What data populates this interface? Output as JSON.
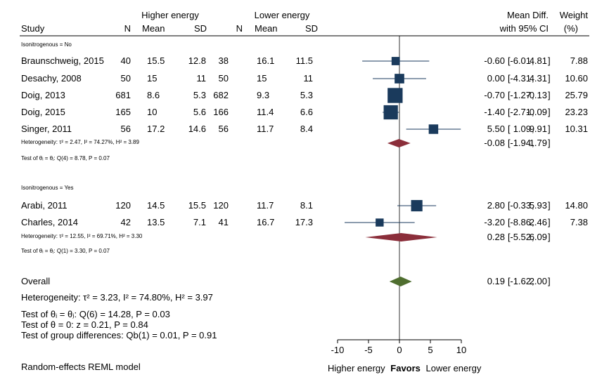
{
  "chart_data": {
    "type": "forest",
    "header": {
      "study": "Study",
      "group1": "Higher energy",
      "group2": "Lower energy",
      "n": "N",
      "mean": "Mean",
      "sd": "SD",
      "effect_line1": "Mean Diff.",
      "effect_line2": "with 95% CI",
      "weight_line1": "Weight",
      "weight_line2": "(%)"
    },
    "subgroups": [
      {
        "label": "Isonitrogenous = No",
        "studies": [
          {
            "name": "Braunschweig, 2015",
            "n1": "40",
            "mean1": "15.5",
            "sd1": "12.8",
            "n2": "38",
            "mean2": "16.1",
            "sd2": "11.5",
            "md": -0.6,
            "lo": -6.01,
            "hi": 4.81,
            "weight": 7.88,
            "md_text": "-0.60",
            "lo_text": "-6.01",
            "hi_text": "4.81",
            "weight_text": "7.88"
          },
          {
            "name": "Desachy, 2008",
            "n1": "50",
            "mean1": "15",
            "sd1": "11",
            "n2": "50",
            "mean2": "15",
            "sd2": "11",
            "md": 0.0,
            "lo": -4.31,
            "hi": 4.31,
            "weight": 10.6,
            "md_text": "0.00",
            "lo_text": "-4.31",
            "hi_text": "4.31",
            "weight_text": "10.60"
          },
          {
            "name": "Doig, 2013",
            "n1": "681",
            "mean1": "8.6",
            "sd1": "5.3",
            "n2": "682",
            "mean2": "9.3",
            "sd2": "5.3",
            "md": -0.7,
            "lo": -1.27,
            "hi": -0.13,
            "weight": 25.79,
            "md_text": "-0.70",
            "lo_text": "-1.27",
            "hi_text": "-0.13",
            "weight_text": "25.79"
          },
          {
            "name": "Doig, 2015",
            "n1": "165",
            "mean1": "10",
            "sd1": "5.6",
            "n2": "166",
            "mean2": "11.4",
            "sd2": "6.6",
            "md": -1.4,
            "lo": -2.71,
            "hi": -0.09,
            "weight": 23.23,
            "md_text": "-1.40",
            "lo_text": "-2.71",
            "hi_text": "-0.09",
            "weight_text": "23.23"
          },
          {
            "name": "Singer, 2011",
            "n1": "56",
            "mean1": "17.2",
            "sd1": "14.6",
            "n2": "56",
            "mean2": "11.7",
            "sd2": "8.4",
            "md": 5.5,
            "lo": 1.09,
            "hi": 9.91,
            "weight": 10.31,
            "md_text": "5.50",
            "lo_text": "1.09",
            "hi_text": "9.91",
            "weight_text": "10.31"
          }
        ],
        "pooled": {
          "md": -0.08,
          "lo": -1.94,
          "hi": 1.79,
          "md_text": "-0.08",
          "lo_text": "-1.94",
          "hi_text": "1.79"
        },
        "heterogeneity": "Heterogeneity: τ² = 2.47, I² = 74.27%, H² = 3.89",
        "test": "Test of θᵢ = θⱼ: Q(4) = 8.78, P = 0.07"
      },
      {
        "label": "Isonitrogenous = Yes",
        "studies": [
          {
            "name": "Arabi, 2011",
            "n1": "120",
            "mean1": "14.5",
            "sd1": "15.5",
            "n2": "120",
            "mean2": "11.7",
            "sd2": "8.1",
            "md": 2.8,
            "lo": -0.33,
            "hi": 5.93,
            "weight": 14.8,
            "md_text": "2.80",
            "lo_text": "-0.33",
            "hi_text": "5.93",
            "weight_text": "14.80"
          },
          {
            "name": "Charles, 2014",
            "n1": "42",
            "mean1": "13.5",
            "sd1": "7.1",
            "n2": "41",
            "mean2": "16.7",
            "sd2": "17.3",
            "md": -3.2,
            "lo": -8.86,
            "hi": 2.46,
            "weight": 7.38,
            "md_text": "-3.20",
            "lo_text": "-8.86",
            "hi_text": "2.46",
            "weight_text": "7.38"
          }
        ],
        "pooled": {
          "md": 0.28,
          "lo": -5.52,
          "hi": 6.09,
          "md_text": "0.28",
          "lo_text": "-5.52",
          "hi_text": "6.09"
        },
        "heterogeneity": "Heterogeneity: τ² = 12.55, I² = 69.71%, H² = 3.30",
        "test": "Test of θᵢ = θⱼ: Q(1) = 3.30, P = 0.07"
      }
    ],
    "overall": {
      "label": "Overall",
      "md": 0.19,
      "lo": -1.62,
      "hi": 2.0,
      "md_text": "0.19",
      "lo_text": "-1.62",
      "hi_text": "2.00",
      "heterogeneity": "Heterogeneity: τ² = 3.23, I² = 74.80%, H² = 3.97",
      "test_homog": "Test of θᵢ = θⱼ: Q(6) = 14.28, P = 0.03",
      "test_zero": "Test of θ = 0: z = 0.21, P = 0.84",
      "test_groups": "Test of group differences: Qb(1) = 0.01, P = 0.91"
    },
    "x_axis": {
      "ticks": [
        -10,
        -5,
        0,
        5,
        10
      ],
      "range": [
        -10,
        10
      ],
      "reference": 0
    },
    "favors": {
      "left": "Higher energy",
      "middle": "Favors",
      "right": "Lower energy"
    },
    "footnote": "Random-effects REML model",
    "colors": {
      "study_marker": "#1a3a5c",
      "ci_line": "#1a3a5c",
      "subgroup_diamond": "#8b2e3a",
      "overall_diamond": "#4f6e2f"
    }
  }
}
